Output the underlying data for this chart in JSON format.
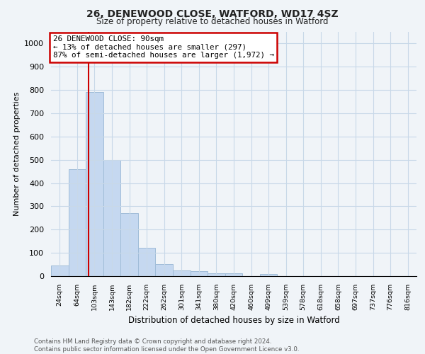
{
  "title_line1": "26, DENEWOOD CLOSE, WATFORD, WD17 4SZ",
  "title_line2": "Size of property relative to detached houses in Watford",
  "xlabel": "Distribution of detached houses by size in Watford",
  "ylabel": "Number of detached properties",
  "footnote1": "Contains HM Land Registry data © Crown copyright and database right 2024.",
  "footnote2": "Contains public sector information licensed under the Open Government Licence v3.0.",
  "bar_labels": [
    "24sqm",
    "64sqm",
    "103sqm",
    "143sqm",
    "182sqm",
    "222sqm",
    "262sqm",
    "301sqm",
    "341sqm",
    "380sqm",
    "420sqm",
    "460sqm",
    "499sqm",
    "539sqm",
    "578sqm",
    "618sqm",
    "658sqm",
    "697sqm",
    "737sqm",
    "776sqm",
    "816sqm"
  ],
  "bar_values": [
    47,
    460,
    790,
    500,
    272,
    122,
    53,
    23,
    20,
    13,
    13,
    0,
    8,
    0,
    0,
    0,
    0,
    0,
    0,
    0,
    0
  ],
  "bar_color": "#c5d8f0",
  "bar_edge_color": "#a0bcd8",
  "annotation_title": "26 DENEWOOD CLOSE: 90sqm",
  "annotation_line2": "← 13% of detached houses are smaller (297)",
  "annotation_line3": "87% of semi-detached houses are larger (1,972) →",
  "annotation_box_color": "#ffffff",
  "annotation_box_edge_color": "#cc0000",
  "vline_color": "#cc0000",
  "ylim": [
    0,
    1050
  ],
  "yticks": [
    0,
    100,
    200,
    300,
    400,
    500,
    600,
    700,
    800,
    900,
    1000
  ],
  "grid_color": "#c8d8e8",
  "bg_color": "#f0f4f8"
}
